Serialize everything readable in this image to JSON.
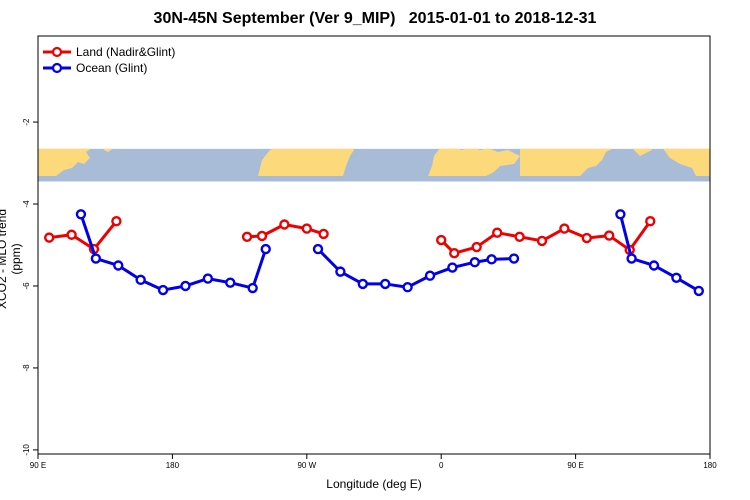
{
  "chart_data": {
    "type": "line",
    "title": "30N-45N September (Ver 9_MIP)",
    "date_range": "2015-01-01 to 2018-12-31",
    "xlabel": "Longitude (deg E)",
    "ylabel": "XCO2 - MLO trend (ppm)",
    "xlim": [
      90,
      450
    ],
    "ylim": [
      -10.1,
      0.1
    ],
    "x_ticks": [
      {
        "value": 90,
        "label": "90 E"
      },
      {
        "value": 162,
        "label": "180"
      },
      {
        "value": 234,
        "label": "90 W"
      },
      {
        "value": 306,
        "label": "0"
      },
      {
        "value": 378,
        "label": "90 E"
      },
      {
        "value": 450,
        "label": "180"
      }
    ],
    "y_ticks": [
      {
        "value": -2,
        "label": "-2"
      },
      {
        "value": -4,
        "label": "-4"
      },
      {
        "value": -6,
        "label": "-6"
      },
      {
        "value": -8,
        "label": "-8"
      },
      {
        "value": -10,
        "label": "-10"
      }
    ],
    "map_band": {
      "y_top": -2.65,
      "y_bottom": -3.45,
      "ocean_color": "#a8bcd8",
      "land_color": "#fcd97a"
    },
    "legend_position": "top-left",
    "series": [
      {
        "name": "Land (Nadir&Glint)",
        "color": "#ee0000",
        "segments": [
          [
            [
              96,
              -4.82
            ],
            [
              108,
              -4.75
            ],
            [
              120,
              -5.1
            ],
            [
              132,
              -4.42
            ]
          ],
          [
            [
              202,
              -4.8
            ],
            [
              210,
              -4.78
            ],
            [
              222,
              -4.5
            ],
            [
              234,
              -4.6
            ],
            [
              243,
              -4.73
            ]
          ],
          [
            [
              306,
              -4.88
            ],
            [
              313,
              -5.2
            ],
            [
              325,
              -5.05
            ],
            [
              336,
              -4.7
            ],
            [
              348,
              -4.8
            ],
            [
              360,
              -4.9
            ],
            [
              372,
              -4.6
            ],
            [
              384,
              -4.83
            ],
            [
              396,
              -4.77
            ],
            [
              407,
              -5.12
            ],
            [
              418,
              -4.42
            ]
          ]
        ]
      },
      {
        "name": "Ocean (Glint)",
        "color": "#0000ee",
        "segments": [
          [
            [
              113,
              -4.25
            ],
            [
              121,
              -5.33
            ],
            [
              133,
              -5.5
            ],
            [
              145,
              -5.85
            ],
            [
              157,
              -6.1
            ],
            [
              169,
              -6.0
            ],
            [
              181,
              -5.82
            ],
            [
              193,
              -5.92
            ],
            [
              205,
              -6.05
            ],
            [
              212,
              -5.1
            ]
          ],
          [
            [
              240,
              -5.1
            ],
            [
              252,
              -5.65
            ],
            [
              264,
              -5.95
            ],
            [
              276,
              -5.95
            ],
            [
              288,
              -6.03
            ],
            [
              300,
              -5.75
            ],
            [
              312,
              -5.55
            ],
            [
              324,
              -5.42
            ],
            [
              333,
              -5.35
            ],
            [
              345,
              -5.33
            ]
          ],
          [
            [
              402,
              -4.25
            ],
            [
              408,
              -5.33
            ],
            [
              420,
              -5.5
            ],
            [
              432,
              -5.8
            ],
            [
              444,
              -6.12
            ]
          ]
        ]
      }
    ]
  }
}
